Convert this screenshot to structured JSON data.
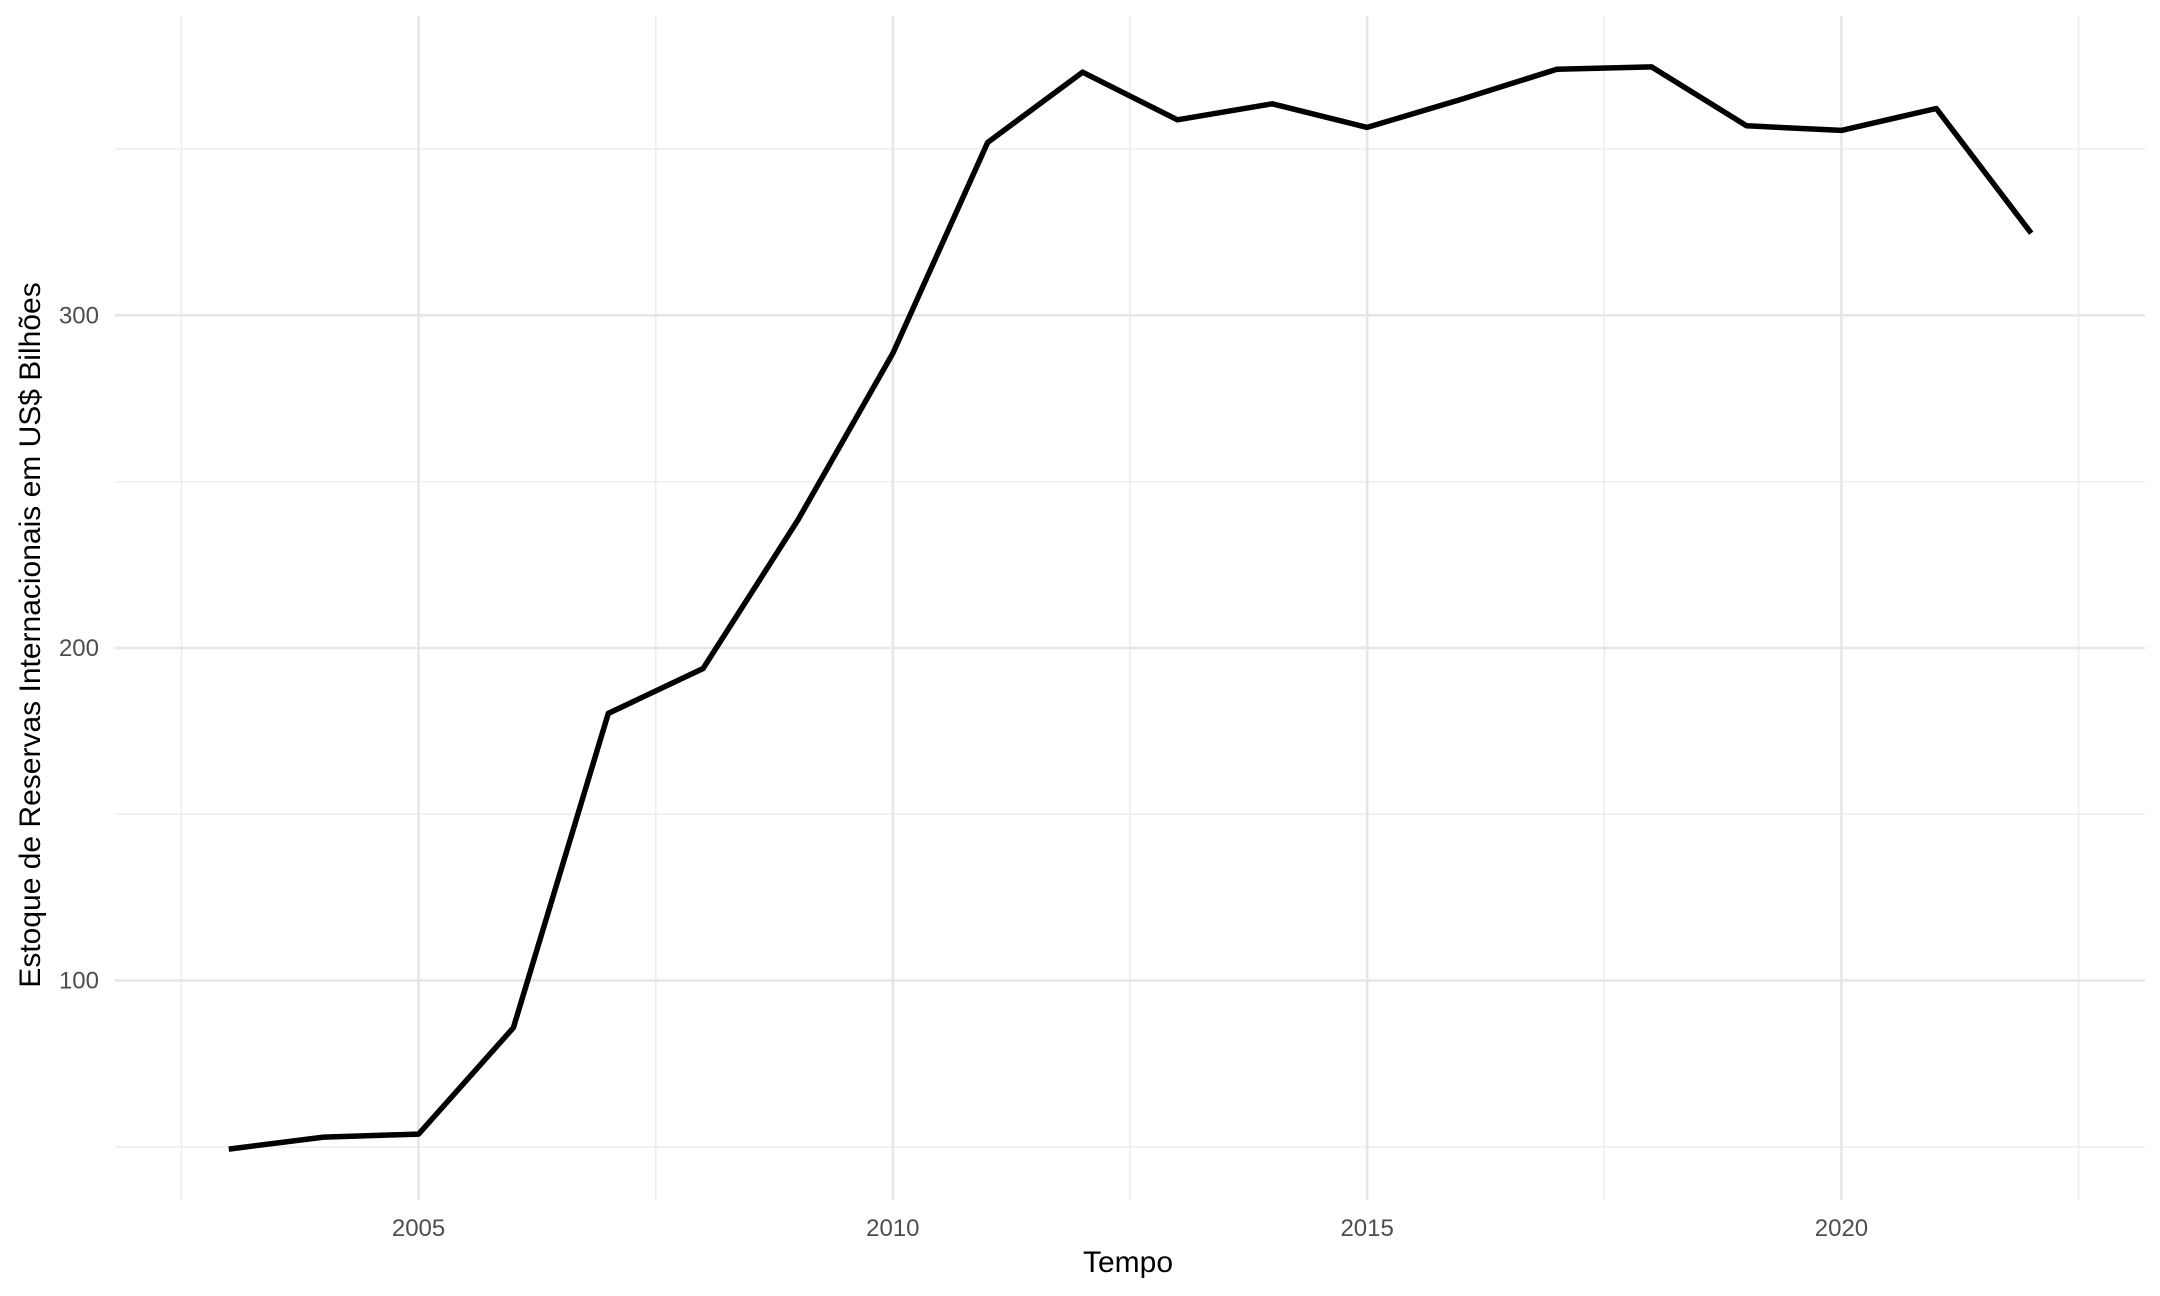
{
  "chart_data": {
    "type": "line",
    "title": "",
    "xlabel": "Tempo",
    "ylabel": "Estoque de Reservas Internacionais em US$ Bilhões",
    "x": [
      2003,
      2004,
      2005,
      2006,
      2007,
      2008,
      2009,
      2010,
      2011,
      2012,
      2013,
      2014,
      2015,
      2016,
      2017,
      2018,
      2019,
      2020,
      2021,
      2022
    ],
    "series": [
      {
        "name": "",
        "values": [
          49.3,
          52.9,
          53.8,
          85.8,
          180.3,
          193.8,
          238.5,
          288.6,
          352.0,
          373.1,
          358.8,
          363.6,
          356.5,
          365.0,
          374.0,
          374.7,
          357.0,
          355.6,
          362.2,
          324.7
        ]
      }
    ],
    "xlim": [
      2001.8,
      2023.2
    ],
    "ylim": [
      34,
      390
    ],
    "xticks": [
      2005,
      2010,
      2015,
      2020
    ],
    "xtick_labels": [
      "2005",
      "2010",
      "2015",
      "2020"
    ],
    "yticks": [
      100,
      200,
      300
    ],
    "ytick_labels": [
      "100",
      "200",
      "300"
    ],
    "grid": true,
    "legend": "none",
    "colors": {
      "line": "#000000",
      "grid": "#e6e6e6",
      "background": "#ffffff"
    }
  }
}
